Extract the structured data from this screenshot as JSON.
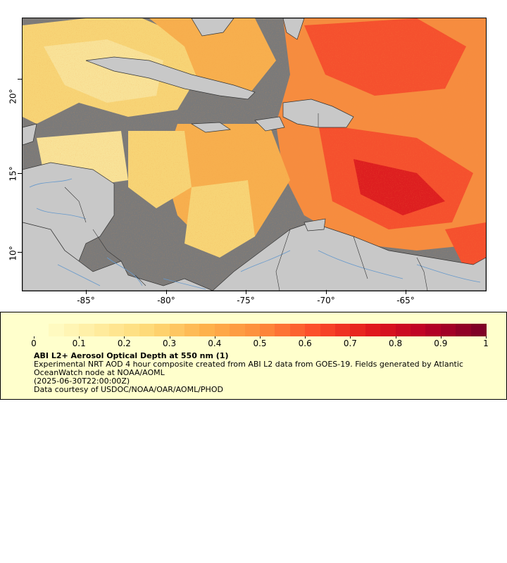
{
  "map": {
    "lat_labels": [
      "20°",
      "15°",
      "10°"
    ],
    "lon_labels": [
      "-85°",
      "-80°",
      "-75°",
      "-70°",
      "-65°"
    ],
    "colors": {
      "land": "#c8c8c8",
      "no_data": "#7a7a7a",
      "borders": "#333333",
      "rivers": "#6699cc"
    }
  },
  "legend": {
    "ticks": [
      "0",
      "0.1",
      "0.2",
      "0.3",
      "0.4",
      "0.5",
      "0.6",
      "0.7",
      "0.8",
      "0.9",
      "1"
    ],
    "colormap": [
      "#ffffcc",
      "#ffeda0",
      "#fed976",
      "#feb24c",
      "#fd8d3c",
      "#fc4e2a",
      "#e31a1c",
      "#bd0026",
      "#800026"
    ],
    "title": "ABI L2+ Aerosol Optical Depth at 550 nm (1)",
    "description": "Experimental NRT AOD 4 hour composite created from ABI L2 data from GOES-19. Fields generated by Atlantic OceanWatch node at NOAA/AOML",
    "timestamp": "(2025-06-30T22:00:00Z)",
    "credit": "Data courtesy of USDOC/NOAA/OAR/AOML/PHOD"
  }
}
